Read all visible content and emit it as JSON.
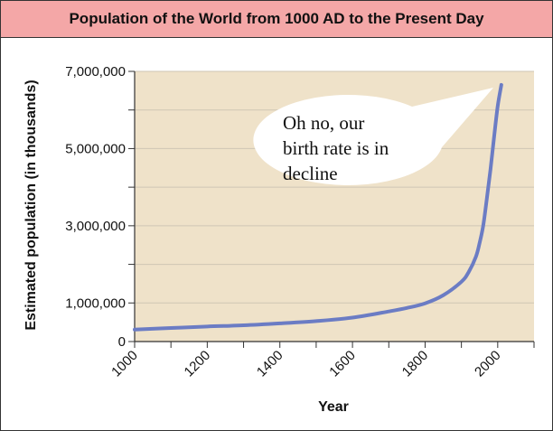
{
  "colors": {
    "title_bar_bg": "#f4a7a7",
    "plot_bg": "#efe2c9",
    "grid": "#cfc6b4",
    "curve": "#6b7cc4",
    "axis": "#333333"
  },
  "chart_data": {
    "type": "line",
    "title": "Population of the World from 1000 AD to the Present Day",
    "xlabel": "Year",
    "ylabel": "Estimated population (in thousands)",
    "xlim": [
      1000,
      2100
    ],
    "ylim": [
      0,
      7000000
    ],
    "grid": true,
    "x_ticks": [
      1000,
      1200,
      1400,
      1600,
      1800,
      2000
    ],
    "x_tick_labels": [
      "1000",
      "1200",
      "1400",
      "1600",
      "1800",
      "2000"
    ],
    "y_ticks": [
      0,
      1000000,
      3000000,
      5000000,
      7000000
    ],
    "y_tick_labels": [
      "0",
      "1,000,000",
      "3,000,000",
      "5,000,000",
      "7,000,000"
    ],
    "series": [
      {
        "x": [
          1000,
          1100,
          1200,
          1300,
          1400,
          1500,
          1600,
          1700,
          1750,
          1800,
          1850,
          1900,
          1920,
          1940,
          1950,
          1960,
          1970,
          1980,
          1990,
          2000,
          2010
        ],
        "y": [
          310000,
          350000,
          390000,
          420000,
          470000,
          530000,
          620000,
          780000,
          870000,
          990000,
          1200000,
          1550000,
          1800000,
          2200000,
          2550000,
          3000000,
          3700000,
          4450000,
          5300000,
          6100000,
          6650000
        ]
      }
    ],
    "annotations": [
      {
        "text_lines": [
          "Oh no, our",
          "birth rate is in",
          "decline"
        ]
      }
    ]
  }
}
